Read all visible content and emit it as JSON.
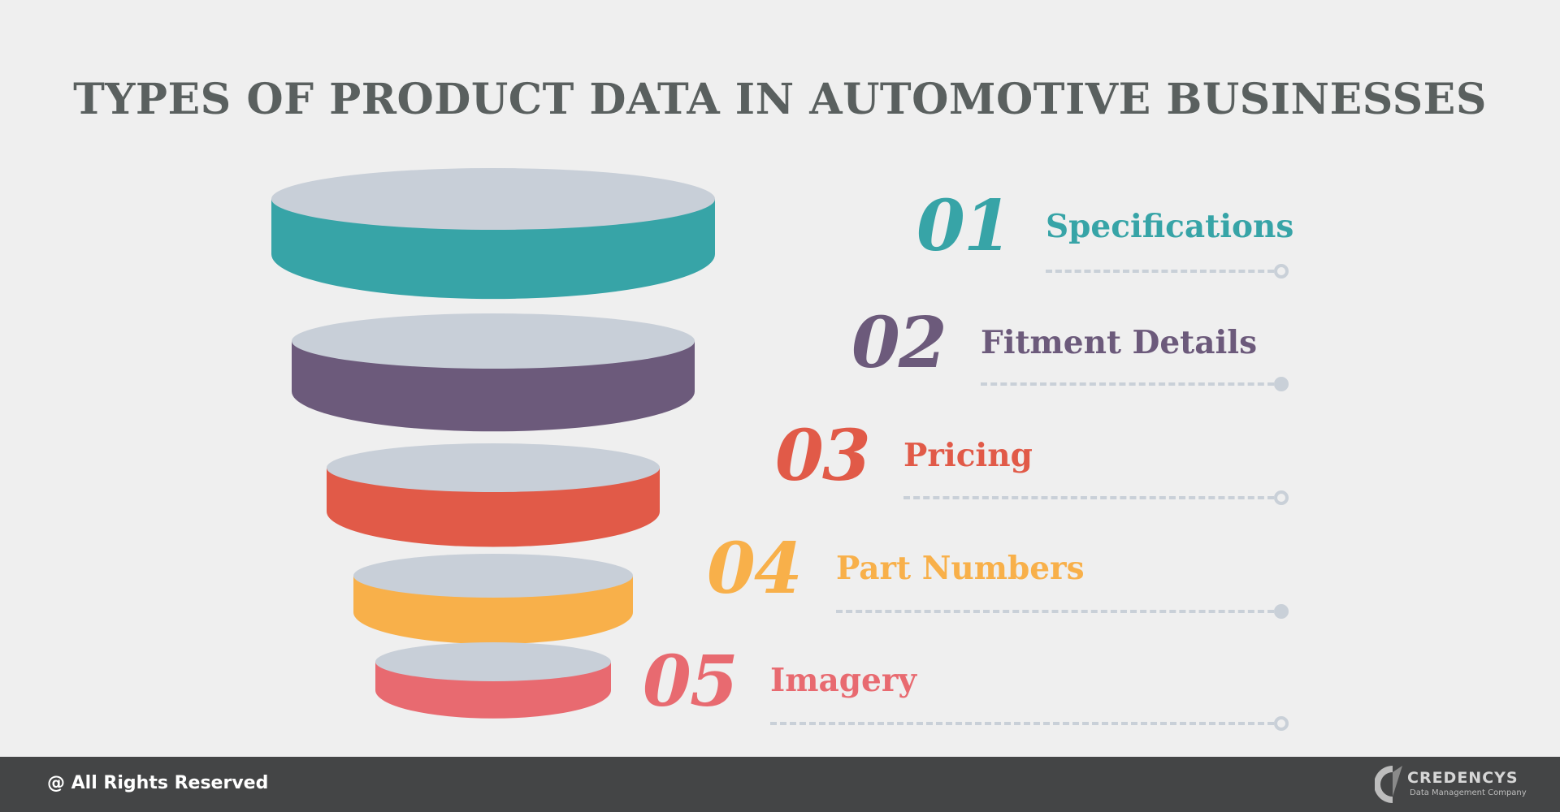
{
  "title": "TYPES OF PRODUCT DATA IN AUTOMOTIVE BUSINESSES",
  "steps": [
    {
      "number": "01",
      "label": "Specifications",
      "color": "#37a4a7",
      "connector_end": "hollow"
    },
    {
      "number": "02",
      "label": "Fitment Details",
      "color": "#6c5a7b",
      "connector_end": "filled"
    },
    {
      "number": "03",
      "label": "Pricing",
      "color": "#e15a48",
      "connector_end": "hollow"
    },
    {
      "number": "04",
      "label": "Part Numbers",
      "color": "#f8b04a",
      "connector_end": "filled"
    },
    {
      "number": "05",
      "label": "Imagery",
      "color": "#e86a70",
      "connector_end": "hollow"
    }
  ],
  "disc_top_color": "#c8cfd8",
  "footer": {
    "rights": "@ All Rights Reserved",
    "logo_name": "CREDENCYS",
    "logo_tagline": "Data Management Company"
  }
}
